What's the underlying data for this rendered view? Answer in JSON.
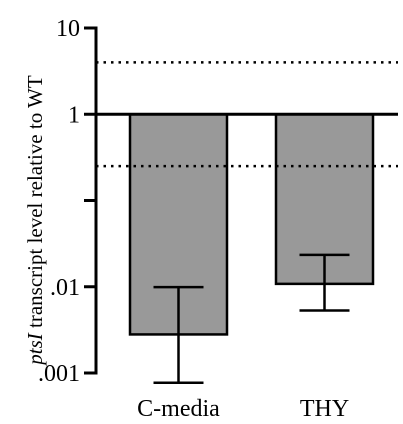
{
  "chart_data": {
    "type": "bar",
    "ylabel_italic": "ptsI",
    "ylabel_rest": " transcript level relative to WT",
    "y_scale": "log10",
    "ylim": [
      0.001,
      10
    ],
    "yticks": [
      {
        "value": 10,
        "label": "10"
      },
      {
        "value": 1,
        "label": "1"
      },
      {
        "value": 0.1,
        "label": ""
      },
      {
        "value": 0.01,
        "label": ".01"
      },
      {
        "value": 0.001,
        "label": ".001"
      }
    ],
    "categories": [
      "C-media",
      "THY"
    ],
    "values": [
      0.0028,
      0.0108
    ],
    "error_low": [
      0.00077,
      0.0053
    ],
    "error_high": [
      0.0099,
      0.0234
    ],
    "bar_color": "#999999",
    "reference_line": 1,
    "threshold_lines": [
      4,
      0.25
    ],
    "grid": false,
    "legend": "none"
  }
}
